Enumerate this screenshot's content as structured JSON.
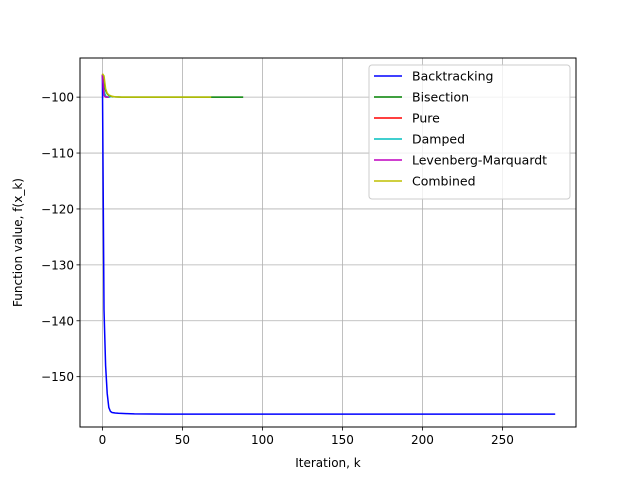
{
  "chart_data": {
    "type": "line",
    "title": "",
    "xlabel": "Iteration, k",
    "ylabel": "Function value, f(x_k)",
    "xlim": [
      -14,
      296
    ],
    "ylim": [
      -159,
      -93
    ],
    "xticks": [
      0,
      50,
      100,
      150,
      200,
      250
    ],
    "yticks": [
      -100,
      -110,
      -120,
      -130,
      -140,
      -150
    ],
    "grid": true,
    "legend_position": "top-right",
    "series": [
      {
        "name": "Backtracking",
        "color": "#0000ff",
        "x": [
          0,
          1,
          2,
          3,
          4,
          5,
          6,
          8,
          10,
          15,
          20,
          40,
          100,
          200,
          283
        ],
        "y": [
          -96,
          -138,
          -148,
          -153,
          -155.5,
          -156.2,
          -156.4,
          -156.5,
          -156.55,
          -156.6,
          -156.65,
          -156.7,
          -156.7,
          -156.7,
          -156.7
        ]
      },
      {
        "name": "Bisection",
        "color": "#008000",
        "x": [
          0,
          1,
          2,
          3,
          4,
          6,
          8,
          12,
          20,
          40,
          88
        ],
        "y": [
          -96,
          -97.5,
          -98.8,
          -99.4,
          -99.7,
          -99.9,
          -99.95,
          -100,
          -100,
          -100,
          -100
        ]
      },
      {
        "name": "Pure",
        "color": "#ff0000",
        "x": [
          0,
          1,
          2,
          3,
          4
        ],
        "y": [
          -96,
          -99,
          -99.9,
          -100,
          -100
        ]
      },
      {
        "name": "Damped",
        "color": "#00bfbf",
        "x": [
          0,
          1,
          2,
          3,
          4,
          5
        ],
        "y": [
          -96,
          -99,
          -99.8,
          -100,
          -100,
          -100
        ]
      },
      {
        "name": "Levenberg-Marquardt",
        "color": "#bf00bf",
        "x": [
          0,
          1,
          2,
          3,
          4
        ],
        "y": [
          -96,
          -99.7,
          -100,
          -100,
          -100
        ]
      },
      {
        "name": "Combined",
        "color": "#bfbf00",
        "x": [
          0,
          1,
          2,
          3,
          4,
          6,
          8,
          12,
          20,
          40,
          68
        ],
        "y": [
          -95.8,
          -96.2,
          -98.5,
          -99.3,
          -99.6,
          -99.85,
          -99.95,
          -100,
          -100,
          -100,
          -100
        ]
      }
    ]
  }
}
